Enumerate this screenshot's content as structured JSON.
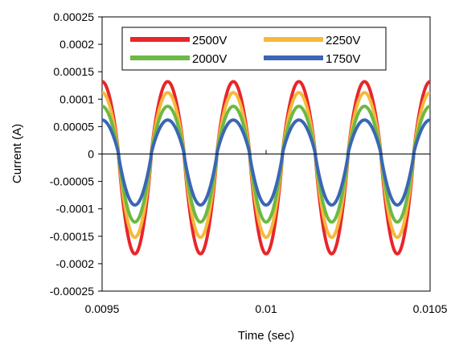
{
  "chart_data": {
    "type": "line",
    "title": "",
    "xlabel": "Time (sec)",
    "ylabel": "Current (A)",
    "xlim": [
      0.0095,
      0.0105
    ],
    "ylim": [
      -0.00025,
      0.00025
    ],
    "x_ticks": [
      {
        "value": 0.0095,
        "label": "0.0095"
      },
      {
        "value": 0.01,
        "label": "0.01"
      },
      {
        "value": 0.0105,
        "label": "0.0105"
      }
    ],
    "y_ticks": [
      {
        "value": 0.00025,
        "label": "0.00025"
      },
      {
        "value": 0.0002,
        "label": "0.0002"
      },
      {
        "value": 0.00015,
        "label": "0.00015"
      },
      {
        "value": 0.0001,
        "label": "0.0001"
      },
      {
        "value": 5e-05,
        "label": "0.00005"
      },
      {
        "value": 0,
        "label": "0"
      },
      {
        "value": -5e-05,
        "label": "-0.00005"
      },
      {
        "value": -0.0001,
        "label": "-0.0001"
      },
      {
        "value": -0.00015,
        "label": "-0.00015"
      },
      {
        "value": -0.0002,
        "label": "-0.0002"
      },
      {
        "value": -0.00025,
        "label": "-0.00025"
      }
    ],
    "grid": false,
    "legend_position": "top",
    "waveform": {
      "period": 0.0002,
      "rising_zero_crossing": 0.00945,
      "sampling": 1e-06
    },
    "series": [
      {
        "name": "2500V",
        "color": "#e8262a",
        "amplitude_pos": 0.000132,
        "amplitude_neg": 0.000182
      },
      {
        "name": "2250V",
        "color": "#f6b93b",
        "amplitude_pos": 0.000112,
        "amplitude_neg": 0.000152
      },
      {
        "name": "2000V",
        "color": "#6cb944",
        "amplitude_pos": 8.7e-05,
        "amplitude_neg": 0.000124
      },
      {
        "name": "1750V",
        "color": "#3a66b5",
        "amplitude_pos": 6.2e-05,
        "amplitude_neg": 9.3e-05
      }
    ]
  }
}
